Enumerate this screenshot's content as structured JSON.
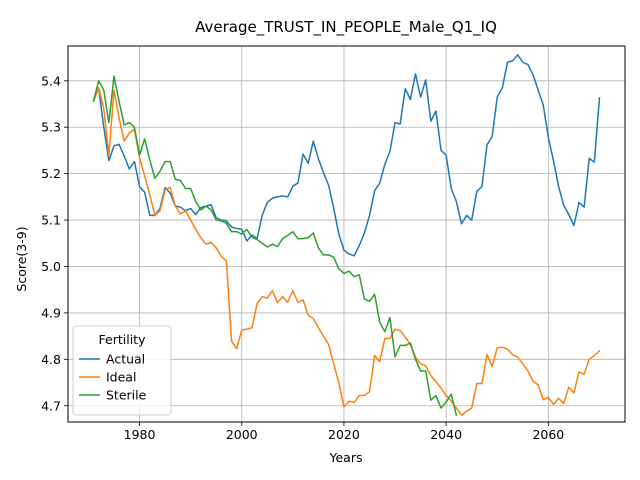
{
  "chart_data": {
    "type": "line",
    "title": "Average_TRUST_IN_PEOPLE_Male_Q1_IQ",
    "xlabel": "Years",
    "ylabel": "Score(3-9)",
    "xlim": [
      1966,
      2075
    ],
    "ylim": [
      4.665,
      5.475
    ],
    "xticks": [
      1980,
      2000,
      2020,
      2040,
      2060
    ],
    "yticks": [
      4.7,
      4.8,
      4.9,
      5.0,
      5.1,
      5.2,
      5.3,
      5.4
    ],
    "ytick_labels": [
      "4.7",
      "4.8",
      "4.9",
      "5.0",
      "5.1",
      "5.2",
      "5.3",
      "5.4"
    ],
    "grid": true,
    "legend": {
      "title": "Fertility",
      "placement": "lower-left"
    },
    "series": [
      {
        "name": "Actual",
        "color": "#1f77b4",
        "points": [
          [
            1971,
            5.357
          ],
          [
            1972,
            5.385
          ],
          [
            1973,
            5.3
          ],
          [
            1974,
            5.228
          ],
          [
            1975,
            5.26
          ],
          [
            1976,
            5.263
          ],
          [
            1977,
            5.238
          ],
          [
            1978,
            5.21
          ],
          [
            1979,
            5.226
          ],
          [
            1980,
            5.172
          ],
          [
            1981,
            5.16
          ],
          [
            1982,
            5.11
          ],
          [
            1983,
            5.11
          ],
          [
            1984,
            5.125
          ],
          [
            1985,
            5.17
          ],
          [
            1986,
            5.158
          ],
          [
            1987,
            5.13
          ],
          [
            1988,
            5.128
          ],
          [
            1989,
            5.12
          ],
          [
            1990,
            5.125
          ],
          [
            1991,
            5.112
          ],
          [
            1992,
            5.127
          ],
          [
            1993,
            5.13
          ],
          [
            1994,
            5.133
          ],
          [
            1995,
            5.105
          ],
          [
            1996,
            5.1
          ],
          [
            1997,
            5.098
          ],
          [
            1998,
            5.085
          ],
          [
            1999,
            5.082
          ],
          [
            2000,
            5.08
          ],
          [
            2001,
            5.055
          ],
          [
            2002,
            5.068
          ],
          [
            2003,
            5.06
          ],
          [
            2004,
            5.11
          ],
          [
            2005,
            5.138
          ],
          [
            2006,
            5.147
          ],
          [
            2007,
            5.15
          ],
          [
            2008,
            5.152
          ],
          [
            2009,
            5.15
          ],
          [
            2010,
            5.173
          ],
          [
            2011,
            5.18
          ],
          [
            2012,
            5.242
          ],
          [
            2013,
            5.222
          ],
          [
            2014,
            5.27
          ],
          [
            2015,
            5.232
          ],
          [
            2016,
            5.202
          ],
          [
            2017,
            5.175
          ],
          [
            2018,
            5.125
          ],
          [
            2019,
            5.07
          ],
          [
            2020,
            5.035
          ],
          [
            2021,
            5.027
          ],
          [
            2022,
            5.023
          ],
          [
            2023,
            5.045
          ],
          [
            2024,
            5.072
          ],
          [
            2025,
            5.11
          ],
          [
            2026,
            5.163
          ],
          [
            2027,
            5.18
          ],
          [
            2028,
            5.22
          ],
          [
            2029,
            5.248
          ],
          [
            2030,
            5.31
          ],
          [
            2031,
            5.307
          ],
          [
            2032,
            5.383
          ],
          [
            2033,
            5.36
          ],
          [
            2034,
            5.415
          ],
          [
            2035,
            5.365
          ],
          [
            2036,
            5.402
          ],
          [
            2037,
            5.313
          ],
          [
            2038,
            5.335
          ],
          [
            2039,
            5.25
          ],
          [
            2040,
            5.24
          ],
          [
            2041,
            5.168
          ],
          [
            2042,
            5.14
          ],
          [
            2043,
            5.092
          ],
          [
            2044,
            5.11
          ],
          [
            2045,
            5.1
          ],
          [
            2046,
            5.162
          ],
          [
            2047,
            5.172
          ],
          [
            2048,
            5.262
          ],
          [
            2049,
            5.28
          ],
          [
            2050,
            5.365
          ],
          [
            2051,
            5.385
          ],
          [
            2052,
            5.44
          ],
          [
            2053,
            5.443
          ],
          [
            2054,
            5.456
          ],
          [
            2055,
            5.44
          ],
          [
            2056,
            5.435
          ],
          [
            2057,
            5.413
          ],
          [
            2058,
            5.38
          ],
          [
            2059,
            5.348
          ],
          [
            2060,
            5.278
          ],
          [
            2061,
            5.228
          ],
          [
            2062,
            5.173
          ],
          [
            2063,
            5.132
          ],
          [
            2064,
            5.112
          ],
          [
            2065,
            5.088
          ],
          [
            2066,
            5.138
          ],
          [
            2067,
            5.128
          ],
          [
            2068,
            5.233
          ],
          [
            2069,
            5.225
          ],
          [
            2070,
            5.363
          ]
        ]
      },
      {
        "name": "Ideal",
        "color": "#ff7f0e",
        "points": [
          [
            1971,
            5.357
          ],
          [
            1972,
            5.385
          ],
          [
            1973,
            5.34
          ],
          [
            1974,
            5.24
          ],
          [
            1975,
            5.38
          ],
          [
            1976,
            5.32
          ],
          [
            1977,
            5.27
          ],
          [
            1978,
            5.288
          ],
          [
            1979,
            5.295
          ],
          [
            1980,
            5.235
          ],
          [
            1981,
            5.195
          ],
          [
            1982,
            5.155
          ],
          [
            1983,
            5.11
          ],
          [
            1984,
            5.12
          ],
          [
            1985,
            5.165
          ],
          [
            1986,
            5.17
          ],
          [
            1987,
            5.13
          ],
          [
            1988,
            5.113
          ],
          [
            1989,
            5.12
          ],
          [
            1990,
            5.1
          ],
          [
            1991,
            5.08
          ],
          [
            1992,
            5.062
          ],
          [
            1993,
            5.048
          ],
          [
            1994,
            5.052
          ],
          [
            1995,
            5.04
          ],
          [
            1996,
            5.022
          ],
          [
            1997,
            5.012
          ],
          [
            1998,
            4.84
          ],
          [
            1999,
            4.823
          ],
          [
            2000,
            4.863
          ],
          [
            2001,
            4.865
          ],
          [
            2002,
            4.868
          ],
          [
            2003,
            4.92
          ],
          [
            2004,
            4.935
          ],
          [
            2005,
            4.932
          ],
          [
            2006,
            4.948
          ],
          [
            2007,
            4.922
          ],
          [
            2008,
            4.935
          ],
          [
            2009,
            4.923
          ],
          [
            2010,
            4.948
          ],
          [
            2011,
            4.923
          ],
          [
            2012,
            4.928
          ],
          [
            2013,
            4.895
          ],
          [
            2014,
            4.888
          ],
          [
            2015,
            4.868
          ],
          [
            2016,
            4.85
          ],
          [
            2017,
            4.832
          ],
          [
            2018,
            4.79
          ],
          [
            2019,
            4.75
          ],
          [
            2020,
            4.697
          ],
          [
            2021,
            4.71
          ],
          [
            2022,
            4.707
          ],
          [
            2023,
            4.722
          ],
          [
            2024,
            4.722
          ],
          [
            2025,
            4.73
          ],
          [
            2026,
            4.808
          ],
          [
            2027,
            4.795
          ],
          [
            2028,
            4.845
          ],
          [
            2029,
            4.845
          ],
          [
            2030,
            4.865
          ],
          [
            2031,
            4.862
          ],
          [
            2032,
            4.848
          ],
          [
            2033,
            4.832
          ],
          [
            2034,
            4.805
          ],
          [
            2035,
            4.79
          ],
          [
            2036,
            4.786
          ],
          [
            2037,
            4.765
          ],
          [
            2038,
            4.752
          ],
          [
            2039,
            4.738
          ],
          [
            2040,
            4.722
          ],
          [
            2041,
            4.71
          ],
          [
            2042,
            4.695
          ],
          [
            2043,
            4.68
          ],
          [
            2044,
            4.688
          ],
          [
            2045,
            4.695
          ],
          [
            2046,
            4.748
          ],
          [
            2047,
            4.748
          ],
          [
            2048,
            4.81
          ],
          [
            2049,
            4.785
          ],
          [
            2050,
            4.825
          ],
          [
            2051,
            4.826
          ],
          [
            2052,
            4.822
          ],
          [
            2053,
            4.81
          ],
          [
            2054,
            4.805
          ],
          [
            2055,
            4.79
          ],
          [
            2056,
            4.775
          ],
          [
            2057,
            4.753
          ],
          [
            2058,
            4.745
          ],
          [
            2059,
            4.713
          ],
          [
            2060,
            4.718
          ],
          [
            2061,
            4.703
          ],
          [
            2062,
            4.716
          ],
          [
            2063,
            4.705
          ],
          [
            2064,
            4.74
          ],
          [
            2065,
            4.728
          ],
          [
            2066,
            4.773
          ],
          [
            2067,
            4.768
          ],
          [
            2068,
            4.8
          ],
          [
            2069,
            4.808
          ],
          [
            2070,
            4.818
          ]
        ]
      },
      {
        "name": "Sterile",
        "color": "#2ca02c",
        "points": [
          [
            1971,
            5.357
          ],
          [
            1972,
            5.4
          ],
          [
            1973,
            5.38
          ],
          [
            1974,
            5.31
          ],
          [
            1975,
            5.41
          ],
          [
            1976,
            5.355
          ],
          [
            1977,
            5.305
          ],
          [
            1978,
            5.31
          ],
          [
            1979,
            5.3
          ],
          [
            1980,
            5.24
          ],
          [
            1981,
            5.275
          ],
          [
            1982,
            5.23
          ],
          [
            1983,
            5.19
          ],
          [
            1984,
            5.205
          ],
          [
            1985,
            5.226
          ],
          [
            1986,
            5.226
          ],
          [
            1987,
            5.188
          ],
          [
            1988,
            5.185
          ],
          [
            1989,
            5.168
          ],
          [
            1990,
            5.168
          ],
          [
            1991,
            5.14
          ],
          [
            1992,
            5.122
          ],
          [
            1993,
            5.13
          ],
          [
            1994,
            5.122
          ],
          [
            1995,
            5.1
          ],
          [
            1996,
            5.098
          ],
          [
            1997,
            5.093
          ],
          [
            1998,
            5.075
          ],
          [
            1999,
            5.075
          ],
          [
            2000,
            5.07
          ],
          [
            2001,
            5.08
          ],
          [
            2002,
            5.063
          ],
          [
            2003,
            5.058
          ],
          [
            2004,
            5.05
          ],
          [
            2005,
            5.042
          ],
          [
            2006,
            5.048
          ],
          [
            2007,
            5.043
          ],
          [
            2008,
            5.06
          ],
          [
            2009,
            5.067
          ],
          [
            2010,
            5.075
          ],
          [
            2011,
            5.06
          ],
          [
            2012,
            5.06
          ],
          [
            2013,
            5.062
          ],
          [
            2014,
            5.072
          ],
          [
            2015,
            5.04
          ],
          [
            2016,
            5.025
          ],
          [
            2017,
            5.025
          ],
          [
            2018,
            5.02
          ],
          [
            2019,
            4.995
          ],
          [
            2020,
            4.985
          ],
          [
            2021,
            4.99
          ],
          [
            2022,
            4.978
          ],
          [
            2023,
            4.982
          ],
          [
            2024,
            4.93
          ],
          [
            2025,
            4.925
          ],
          [
            2026,
            4.94
          ],
          [
            2027,
            4.88
          ],
          [
            2028,
            4.86
          ],
          [
            2029,
            4.89
          ],
          [
            2030,
            4.805
          ],
          [
            2031,
            4.83
          ],
          [
            2032,
            4.83
          ],
          [
            2033,
            4.835
          ],
          [
            2034,
            4.8
          ],
          [
            2035,
            4.775
          ],
          [
            2036,
            4.775
          ],
          [
            2037,
            4.712
          ],
          [
            2038,
            4.722
          ],
          [
            2039,
            4.695
          ],
          [
            2040,
            4.708
          ],
          [
            2041,
            4.725
          ],
          [
            2042,
            4.68
          ]
        ]
      }
    ]
  }
}
